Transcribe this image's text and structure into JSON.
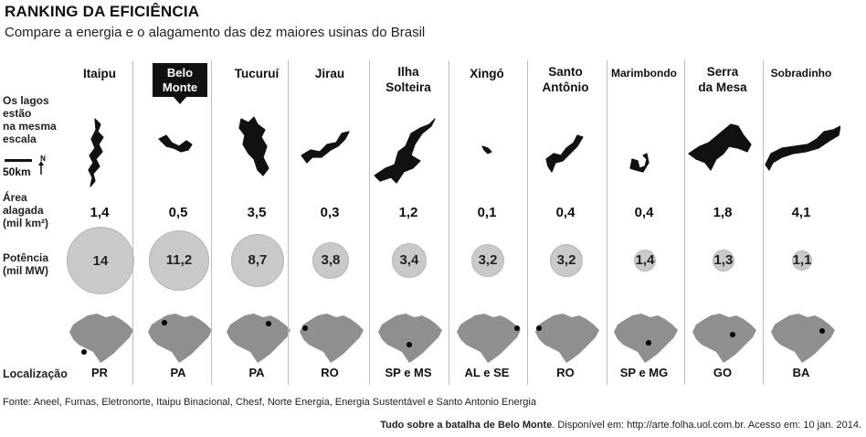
{
  "header": {
    "title": "RANKING DA EFICIÊNCIA",
    "subtitle": "Compare a energia e o alagamento das dez maiores usinas do Brasil"
  },
  "row_labels": {
    "lakes": [
      "Os lagos",
      "estão",
      "na mesma",
      "escala"
    ],
    "scale": "50km",
    "north": "N",
    "area": [
      "Área",
      "alagada",
      "(mil km²)"
    ],
    "power": [
      "Potência",
      "(mil MW)"
    ],
    "location": "Localização"
  },
  "chart_data": {
    "type": "table",
    "title": "RANKING DA EFICIÊNCIA",
    "subtitle": "Compare a energia e o alagamento das dez maiores usinas do Brasil",
    "highlighted": "Belo Monte",
    "plants": [
      {
        "name": [
          "Itaipu"
        ],
        "area": "1,4",
        "power": "14",
        "location": "PR"
      },
      {
        "name": [
          "Belo",
          "Monte"
        ],
        "area": "0,5",
        "power": "11,2",
        "location": "PA"
      },
      {
        "name": [
          "Tucuruí"
        ],
        "area": "3,5",
        "power": "8,7",
        "location": "PA"
      },
      {
        "name": [
          "Jirau"
        ],
        "area": "0,3",
        "power": "3,8",
        "location": "RO"
      },
      {
        "name": [
          "Ilha",
          "Solteira"
        ],
        "area": "1,2",
        "power": "3,4",
        "location": "SP e MS"
      },
      {
        "name": [
          "Xingó"
        ],
        "area": "0,1",
        "power": "3,2",
        "location": "AL e SE"
      },
      {
        "name": [
          "Santo",
          "Antônio"
        ],
        "area": "0,4",
        "power": "3,2",
        "location": "RO"
      },
      {
        "name": [
          "Marimbondo"
        ],
        "area": "0,4",
        "power": "1,4",
        "location": "SP e MG"
      },
      {
        "name": [
          "Serra",
          "da Mesa"
        ],
        "area": "1,8",
        "power": "1,3",
        "location": "GO"
      },
      {
        "name": [
          "Sobradinho"
        ],
        "area": "4,1",
        "power": "1,1",
        "location": "BA"
      }
    ]
  },
  "footer": {
    "source": "Fonte: Aneel, Furnas, Eletronorte, Itaipu Binacional, Chesf, Norte Energia, Energia Sustentável e Santo Antonio Energia",
    "citation_bold": "Tudo sobre a batalha de Belo Monte",
    "citation_rest": ". Disponível em: http://arte.folha.uol.com.br. Acesso em: 10 jan. 2014."
  },
  "colors": {
    "bubble": "#c9c9c9",
    "lake": "#111111",
    "map": "#8f8f8f",
    "dot": "#000000",
    "highlight": "#111111"
  }
}
